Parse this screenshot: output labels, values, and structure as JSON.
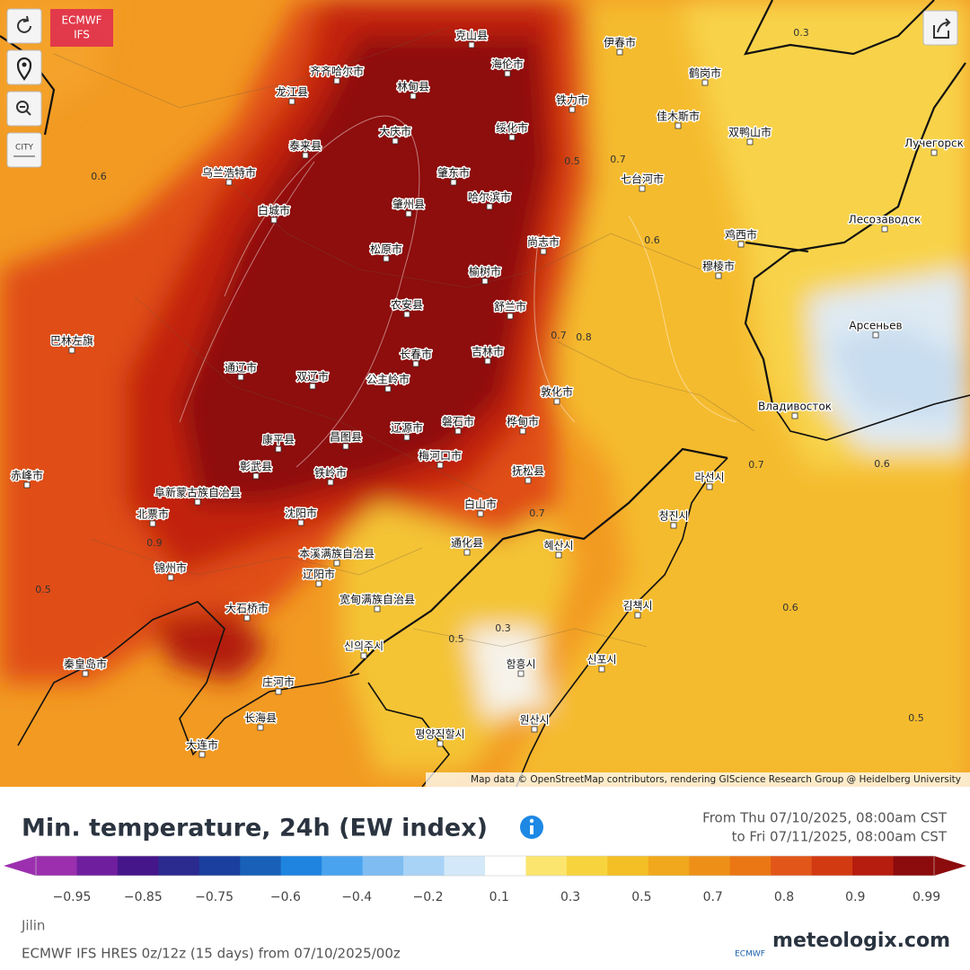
{
  "map": {
    "badge": [
      "ECMWF",
      "IFS"
    ],
    "city_button": "CITY",
    "attribution": "Map data © OpenStreetMap contributors, rendering GIScience Research Group @ Heidelberg University",
    "cities": [
      "克山县",
      "海伦市",
      "齐齐哈尔市",
      "龙江县",
      "林甸县",
      "绥化市",
      "铁力市",
      "伊春市",
      "鹤岗市",
      "佳木斯市",
      "双鸭山市",
      "大庆市",
      "泰来县",
      "肇东市",
      "肇州县",
      "哈尔滨市",
      "乌兰浩特市",
      "白城市",
      "七台河市",
      "尚志市",
      "松原市",
      "鸡西市",
      "穆棱市",
      "榆树市",
      "舒兰市",
      "农安县",
      "长春市",
      "吉林市",
      "双辽市",
      "通辽市",
      "公主岭市",
      "敦化市",
      "辽源市",
      "磐石市",
      "桦甸市",
      "梅河口市",
      "康平县",
      "昌图县",
      "彰武县",
      "铁岭市",
      "阜新蒙古族自治县",
      "抚松县",
      "北票市",
      "沈阳市",
      "白山市",
      "通化县",
      "本溪满族自治县",
      "锦州市",
      "辽阳市",
      "宽甸满族自治县",
      "大石桥市",
      "庄河市",
      "长海县",
      "大连市",
      "秦皇岛市",
      "巴林左旗",
      "赤峰市",
      "Лучегорск",
      "Лесозаводск",
      "Арсеньев",
      "Владивосток",
      "라선시",
      "청진시",
      "혜산시",
      "김책시",
      "신의주시",
      "함흥시",
      "신포시",
      "원산시",
      "평양직할시"
    ],
    "contours": [
      "0.3",
      "0.6",
      "0.5",
      "0.7",
      "0.6",
      "0.7",
      "0.8",
      "0.7",
      "0.6",
      "0.7",
      "0.6",
      "0.5",
      "0.5",
      "0.3",
      "0.9",
      "0.5"
    ]
  },
  "title": "Min. temperature, 24h (EW index)",
  "period": [
    "From Thu 07/10/2025, 08:00am CST",
    "to Fri 07/11/2025, 08:00am CST"
  ],
  "legend": {
    "colors": [
      "#9b2fae",
      "#6f1f9e",
      "#45168a",
      "#2a2a8f",
      "#1b3f9e",
      "#1860b8",
      "#1e84e0",
      "#4aa3ef",
      "#7ebcf2",
      "#a9d3f6",
      "#d3e8f8",
      "#ffffff",
      "#fbe56e",
      "#f7d43d",
      "#f4bf25",
      "#f1a81c",
      "#ee9018",
      "#ea7614",
      "#e2561a",
      "#d23a12",
      "#b61d0e",
      "#8c0b0c"
    ],
    "ticks": [
      "−0.95",
      "−0.85",
      "−0.75",
      "−0.6",
      "−0.4",
      "−0.2",
      "0.1",
      "0.3",
      "0.5",
      "0.7",
      "0.8",
      "0.9",
      "0.99"
    ]
  },
  "region": "Jilin",
  "model": "ECMWF IFS HRES 0z/12z (15 days) from 07/10/2025/00z",
  "logo": [
    "ECMWF",
    "meteologix.com"
  ]
}
